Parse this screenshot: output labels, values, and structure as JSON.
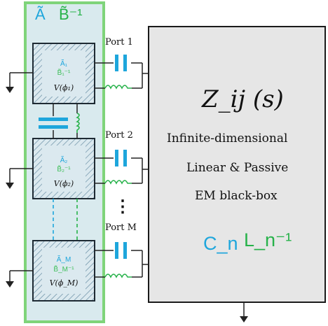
{
  "colors": {
    "panel_fill": "#d9eaee",
    "panel_border": "#7fd47a",
    "block_border": "#1e2a33",
    "hatch": "#6a8fa5",
    "capacitor": "#1ea6dc",
    "inductor": "#27b24a",
    "blackbox_fill": "#e6e6e6",
    "wire": "#222222"
  },
  "header": {
    "a_tilde": "Ã",
    "b_tilde_inv": "B̃⁻¹"
  },
  "blocks": [
    {
      "a": "Ã₁",
      "b": "B̃₁⁻¹",
      "v": "V(ϕ₁)"
    },
    {
      "a": "Ã₂",
      "b": "B̃₂⁻¹",
      "v": "V(ϕ₂)"
    },
    {
      "a": "Ã_M",
      "b": "B̃_M⁻¹",
      "v": "V(ϕ_M)"
    }
  ],
  "ports": [
    "Port 1",
    "Port 2",
    "Port M"
  ],
  "ellipsis": "⋮",
  "blackbox": {
    "title": "Z_ij (s)",
    "line1": "Infinite-dimensional",
    "line2": "Linear & Passive",
    "line3": "EM black-box",
    "c_label": "C_n",
    "l_label": "L_n⁻¹"
  }
}
